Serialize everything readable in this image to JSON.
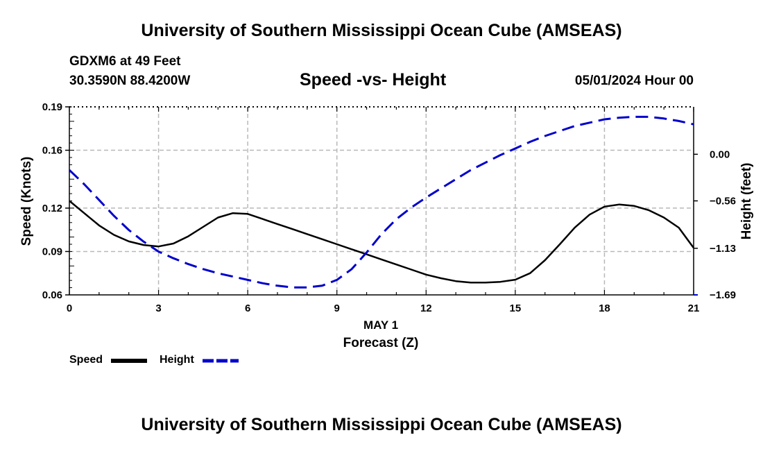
{
  "header": {
    "title": "University of Southern Mississippi Ocean Cube (AMSEAS)",
    "station": "GDXM6 at 49 Feet",
    "coords": "30.3590N  88.4200W",
    "datetime": "05/01/2024 Hour 00"
  },
  "footer": {
    "title": "University of Southern Mississippi Ocean Cube (AMSEAS)"
  },
  "chart_data": {
    "type": "line",
    "title": "Speed -vs- Height",
    "xlabel": "Forecast (Z)",
    "xsublabel": "MAY 1",
    "ylabel": "Speed (Knots)",
    "y2label": "Height (feet)",
    "xlim": [
      0,
      21
    ],
    "ylim": [
      0.06,
      0.19
    ],
    "y2lim": [
      -1.69,
      0.57
    ],
    "x_ticks": [
      "0",
      "3",
      "6",
      "9",
      "12",
      "15",
      "18",
      "21"
    ],
    "x_tick_values": [
      0,
      3,
      6,
      9,
      12,
      15,
      18,
      21
    ],
    "y_ticks": [
      "0.06",
      "0.09",
      "0.12",
      "0.16",
      "0.19"
    ],
    "y_tick_values": [
      0.06,
      0.09,
      0.12,
      0.16,
      0.19
    ],
    "y2_ticks": [
      "−1.69",
      "−1.13",
      "−0.56",
      "0.00"
    ],
    "y2_tick_values": [
      -1.69,
      -1.13,
      -0.56,
      0.0
    ],
    "grid": true,
    "series": [
      {
        "name": "Speed",
        "axis": "left",
        "color": "#000000",
        "dash": "solid",
        "x": [
          0,
          0.5,
          1,
          1.5,
          2,
          2.5,
          3,
          3.5,
          4,
          4.5,
          5,
          5.5,
          6,
          6.5,
          7,
          7.5,
          8,
          8.5,
          9,
          9.5,
          10,
          10.5,
          11,
          11.5,
          12,
          12.5,
          13,
          13.5,
          14,
          14.5,
          15,
          15.5,
          16,
          16.5,
          17,
          17.5,
          18,
          18.5,
          19,
          19.5,
          20,
          20.5,
          21
        ],
        "values": [
          0.125,
          0.1165,
          0.108,
          0.1015,
          0.097,
          0.0945,
          0.0935,
          0.0955,
          0.1005,
          0.107,
          0.1135,
          0.1165,
          0.116,
          0.1125,
          0.109,
          0.1055,
          0.102,
          0.0985,
          0.095,
          0.0915,
          0.088,
          0.0845,
          0.081,
          0.0775,
          0.074,
          0.0715,
          0.0695,
          0.0685,
          0.0685,
          0.069,
          0.0705,
          0.075,
          0.084,
          0.095,
          0.1065,
          0.1155,
          0.121,
          0.1225,
          0.1215,
          0.1185,
          0.1135,
          0.1065,
          0.0925
        ]
      },
      {
        "name": "Height",
        "axis": "right",
        "color": "#0000cc",
        "dash": "dashed",
        "x": [
          0,
          0.5,
          1,
          1.5,
          2,
          2.5,
          3,
          3.5,
          4,
          4.5,
          5,
          5.5,
          6,
          6.5,
          7,
          7.5,
          8,
          8.5,
          9,
          9.5,
          10,
          10.5,
          11,
          11.5,
          12,
          12.5,
          13,
          13.5,
          14,
          14.5,
          15,
          15.5,
          16,
          16.5,
          17,
          17.5,
          18,
          18.5,
          19,
          19.5,
          20,
          20.5,
          21
        ],
        "values": [
          -0.19,
          -0.36,
          -0.55,
          -0.74,
          -0.91,
          -1.05,
          -1.17,
          -1.25,
          -1.32,
          -1.38,
          -1.43,
          -1.47,
          -1.51,
          -1.55,
          -1.58,
          -1.6,
          -1.6,
          -1.58,
          -1.51,
          -1.38,
          -1.18,
          -0.96,
          -0.78,
          -0.64,
          -0.52,
          -0.41,
          -0.3,
          -0.19,
          -0.1,
          -0.01,
          0.07,
          0.15,
          0.22,
          0.28,
          0.34,
          0.38,
          0.42,
          0.44,
          0.45,
          0.45,
          0.43,
          0.4,
          0.36
        ]
      }
    ],
    "legend": [
      {
        "label": "Speed",
        "color": "#000000",
        "dash": "solid"
      },
      {
        "label": "Height",
        "color": "#0000cc",
        "dash": "dashed"
      }
    ],
    "legend_position": "bottom-left"
  }
}
